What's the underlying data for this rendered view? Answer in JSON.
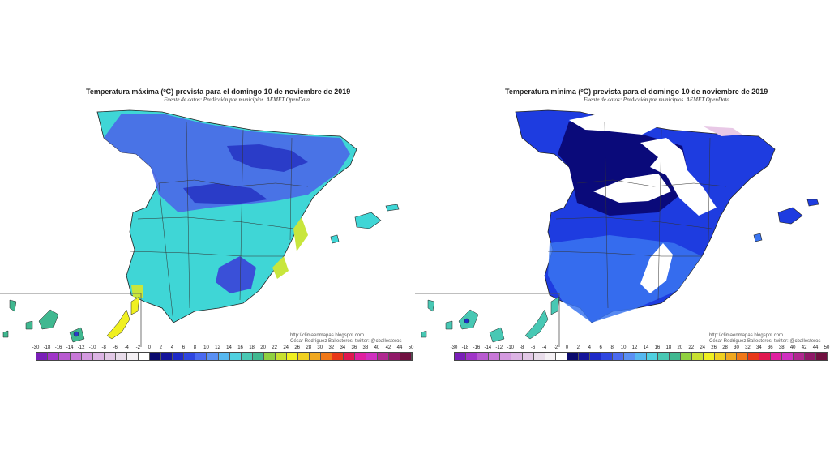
{
  "left": {
    "title": "Temperatura máxima (ºC) prevista para el domingo 10 de noviembre de 2019",
    "subtitle": "Fuente de datos: Predicción por municipios. AEMET OpenData",
    "credit_url": "http://climaenmapas.blogspot.com",
    "credit_author": "César Rodríguez Ballesteros. twitter: @cballesteros"
  },
  "right": {
    "title": "Temperatura mínima (ºC) prevista para el domingo 10 de noviembre de 2019",
    "subtitle": "Fuente de datos: Predicción por municipios. AEMET OpenData",
    "credit_url": "http://climaenmapas.blogspot.com",
    "credit_author": "César Rodríguez Ballesteros. twitter: @cballesteros"
  },
  "scale": {
    "ticks": [
      "-30",
      "-18",
      "-16",
      "-14",
      "-12",
      "-10",
      "-8",
      "-6",
      "-4",
      "-2",
      "0",
      "2",
      "4",
      "6",
      "8",
      "10",
      "12",
      "14",
      "16",
      "18",
      "20",
      "22",
      "24",
      "26",
      "28",
      "30",
      "32",
      "34",
      "36",
      "38",
      "40",
      "42",
      "44",
      "50"
    ],
    "colors": [
      "#7a1fb8",
      "#a035c8",
      "#b85ad0",
      "#c878d8",
      "#d49ae0",
      "#dcb4e4",
      "#e2c8e6",
      "#e8dcea",
      "#f4f0f4",
      "#ffffff",
      "#0a0a6e",
      "#14149a",
      "#1e2ac8",
      "#2e46e0",
      "#4a6af0",
      "#5a90f4",
      "#56b8f0",
      "#50d0e0",
      "#48c8b4",
      "#40b890",
      "#90d040",
      "#c8e030",
      "#f0f020",
      "#f0d020",
      "#f0a820",
      "#f07818",
      "#e83818",
      "#e01850",
      "#e020a0",
      "#d030c0",
      "#b02890",
      "#901868",
      "#701040"
    ]
  },
  "colors": {
    "max_main": "#3fd6d6",
    "max_cool": "#4a68e8",
    "max_cold": "#2a3cc8",
    "max_warm": "#c8e63c",
    "min_main": "#1e3ce0",
    "min_light": "#3a74f0",
    "min_deep": "#0a0a7a",
    "snow": "#ffffff"
  }
}
